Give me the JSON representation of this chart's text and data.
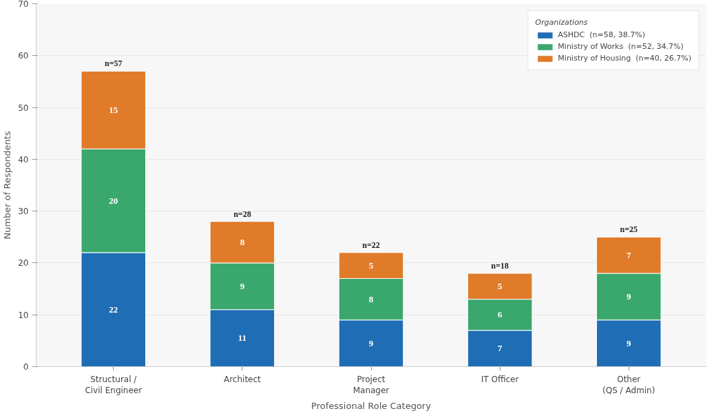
{
  "chart_data": {
    "type": "bar",
    "stacked": true,
    "xlabel": "Professional Role Category",
    "ylabel": "Number of Respondents",
    "legend_title": "Organizations",
    "legend": "top right",
    "grid": "y",
    "data_labels": true,
    "categories": [
      "Structural /\nCivil Engineer",
      "Architect",
      "Project\nManager",
      "IT Officer",
      "Other\n(QS / Admin)"
    ],
    "series": [
      {
        "name": "ASHDC  (n=58, 38.7%)",
        "color": "#1f6db5",
        "values": [
          22,
          11,
          9,
          7,
          9
        ]
      },
      {
        "name": "Ministry of Works  (n=52, 34.7%)",
        "color": "#3aa76d",
        "values": [
          20,
          9,
          8,
          6,
          9
        ]
      },
      {
        "name": "Ministry of Housing  (n=40, 26.7%)",
        "color": "#e07b2a",
        "values": [
          15,
          8,
          5,
          5,
          7
        ]
      }
    ],
    "totals": [
      "n=57",
      "n=28",
      "n=22",
      "n=18",
      "n=25"
    ],
    "ylim": [
      0,
      70
    ],
    "yticks": [
      0,
      10,
      20,
      30,
      40,
      50,
      60,
      70
    ]
  }
}
